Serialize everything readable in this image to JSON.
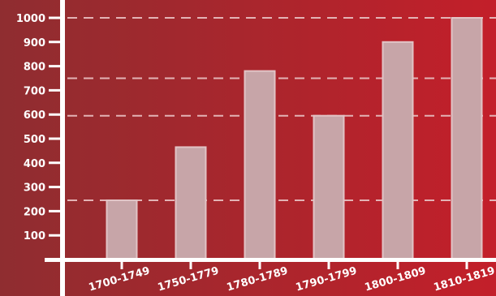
{
  "colors": {
    "background_left": "#8f2d30",
    "background_right": "#c31f2a",
    "bar_fill": "#c7a5a8",
    "bar_edge": "#e2c4c6",
    "axis": "#ffffff",
    "reference_line": "#e3b3b5"
  },
  "chart_data": {
    "type": "bar",
    "title": "",
    "xlabel": "",
    "ylabel": "",
    "categories": [
      "1700-1749",
      "1750-1779",
      "1780-1789",
      "1790-1799",
      "1800-1809",
      "1810-1819"
    ],
    "values": [
      245,
      465,
      780,
      595,
      900,
      1000
    ],
    "ylim": [
      0,
      1100
    ],
    "y_ticks": [
      100,
      200,
      300,
      400,
      500,
      600,
      700,
      800,
      900,
      1000
    ],
    "y_tick_labels": [
      "100",
      "200",
      "300",
      "400",
      "500",
      "600",
      "700",
      "800",
      "900",
      "1000"
    ],
    "reference_lines": [
      245,
      595,
      750,
      1000
    ],
    "grid": false,
    "legend": "none"
  }
}
